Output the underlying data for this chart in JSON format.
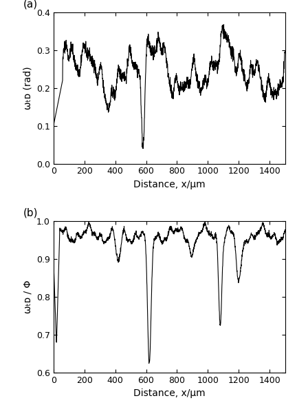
{
  "fig_width": 4.32,
  "fig_height": 5.88,
  "dpi": 100,
  "background_color": "#ffffff",
  "panel_a": {
    "label": "(a)",
    "xlabel": "Distance, x/μm",
    "ylabel": "ωₜᴅ (rad)",
    "xlim": [
      0,
      1500
    ],
    "ylim": [
      0.0,
      0.4
    ],
    "xticks": [
      0,
      200,
      400,
      600,
      800,
      1000,
      1200,
      1400
    ],
    "yticks": [
      0.0,
      0.1,
      0.2,
      0.3,
      0.4
    ],
    "line_color": "#000000",
    "line_width": 0.8
  },
  "panel_b": {
    "label": "(b)",
    "xlabel": "Distance, x/μm",
    "ylabel": "ωₜᴅ / Φ",
    "xlim": [
      0,
      1500
    ],
    "ylim": [
      0.6,
      1.0
    ],
    "xticks": [
      0,
      200,
      400,
      600,
      800,
      1000,
      1200,
      1400
    ],
    "yticks": [
      0.6,
      0.7,
      0.8,
      0.9,
      1.0
    ],
    "line_color": "#000000",
    "line_width": 0.8
  }
}
